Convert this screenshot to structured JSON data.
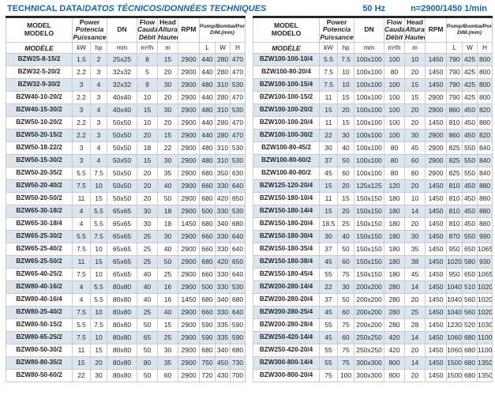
{
  "title": {
    "left_en": "TECHNICAL DATA/",
    "left_intl": "DATOS TÉCNICOS/DONNÉES TECHNIQUES",
    "frequency": "50 Hz",
    "speed": "n=2900/1450 1/min"
  },
  "colors": {
    "accent_blue": "#1566a9",
    "row_shade": "#dce4ec",
    "table_top_border": "#23282f"
  },
  "header": {
    "model": {
      "en": "MODEL",
      "es": "MODELO",
      "fr": "MODÈLE"
    },
    "power": {
      "en": "Power",
      "es": "Potencia",
      "fr": "Puissance"
    },
    "dn_label": "DN",
    "flow": {
      "en": "Flow",
      "es": "Caudal",
      "fr": "Débit"
    },
    "head": {
      "en": "Head",
      "es": "Altura",
      "fr": "Hauteur"
    },
    "rpm_label": "RPM",
    "dim": {
      "line1": "Pump/Bomba/Pompe",
      "line2": "DIM.(mm)"
    },
    "units": {
      "kw": "kW",
      "hp": "hp",
      "mm": "mm",
      "flow": "m³/h",
      "head": "m",
      "l": "L",
      "w": "W",
      "h": "H"
    }
  },
  "tables": [
    {
      "name": "left",
      "rows": [
        [
          "BZW25-8-15/2",
          "1.5",
          "2",
          "25x25",
          "8",
          "15",
          "2900",
          "440",
          "280",
          "470"
        ],
        [
          "BZW32-5-20/2",
          "2.2",
          "3",
          "32x32",
          "5",
          "20",
          "2900",
          "440",
          "280",
          "470"
        ],
        [
          "BZW32-9-30/2",
          "3",
          "4",
          "32x32",
          "9",
          "30",
          "2900",
          "480",
          "310",
          "530"
        ],
        [
          "BZW40-10-20/2",
          "2.2",
          "3",
          "40x40",
          "10",
          "20",
          "2900",
          "440",
          "280",
          "470"
        ],
        [
          "BZW40-15-30/2",
          "3",
          "4",
          "40x40",
          "15",
          "30",
          "2900",
          "480",
          "310",
          "530"
        ],
        [
          "BZW50-10-20/2",
          "2.2",
          "3",
          "50x50",
          "10",
          "20",
          "2900",
          "440",
          "280",
          "470"
        ],
        [
          "BZW50-20-15/2",
          "2.2",
          "3",
          "50x50",
          "20",
          "15",
          "2900",
          "440",
          "280",
          "470"
        ],
        [
          "BZW50-18-22/2",
          "3",
          "4",
          "50x50",
          "18",
          "22",
          "2900",
          "480",
          "310",
          "530"
        ],
        [
          "BZW50-15-30/2",
          "3",
          "4",
          "50x50",
          "15",
          "30",
          "2900",
          "480",
          "310",
          "530"
        ],
        [
          "BZW50-20-35/2",
          "5.5",
          "7.5",
          "50x50",
          "20",
          "35",
          "2900",
          "680",
          "350",
          "630"
        ],
        [
          "BZW50-20-40/2",
          "7.5",
          "10",
          "50x50",
          "20",
          "40",
          "2900",
          "660",
          "330",
          "640"
        ],
        [
          "BZW50-20-50/2",
          "11",
          "15",
          "50x50",
          "20",
          "50",
          "2900",
          "680",
          "420",
          "650"
        ],
        [
          "BZW65-30-18/2",
          "4",
          "5.5",
          "65x65",
          "30",
          "18",
          "2900",
          "500",
          "330",
          "530"
        ],
        [
          "BZW65-30-18/4",
          "4",
          "5.5",
          "65x65",
          "30",
          "18",
          "1450",
          "680",
          "340",
          "680"
        ],
        [
          "BZW65-25-30/2",
          "5.5",
          "7.5",
          "65x65",
          "25",
          "30",
          "2900",
          "660",
          "330",
          "640"
        ],
        [
          "BZW65-25-40/2",
          "7.5",
          "10",
          "65x65",
          "25",
          "40",
          "2900",
          "660",
          "330",
          "640"
        ],
        [
          "BZW65-25-50/2",
          "11",
          "15",
          "65x65",
          "25",
          "50",
          "2900",
          "680",
          "420",
          "650"
        ],
        [
          "BZW65-40-25/2",
          "7.5",
          "10",
          "65x65",
          "40",
          "25",
          "2900",
          "660",
          "330",
          "640"
        ],
        [
          "BZW80-40-16/2",
          "4",
          "5.5",
          "80x80",
          "40",
          "16",
          "2900",
          "500",
          "330",
          "530"
        ],
        [
          "BZW80-40-16/4",
          "4",
          "5.5",
          "80x80",
          "40",
          "16",
          "1450",
          "680",
          "340",
          "680"
        ],
        [
          "BZW80-25-40/2",
          "7.5",
          "10",
          "80x80",
          "25",
          "40",
          "2900",
          "660",
          "330",
          "640"
        ],
        [
          "BZW80-50-15/2",
          "5.5",
          "7.5",
          "80x80",
          "50",
          "15",
          "2900",
          "590",
          "335",
          "590"
        ],
        [
          "BZW80-65-25/2",
          "7.5",
          "10",
          "80x80",
          "65",
          "25",
          "2900",
          "590",
          "335",
          "590"
        ],
        [
          "BZW80-50-30/2",
          "11",
          "15",
          "80x80",
          "50",
          "30",
          "2900",
          "680",
          "340",
          "680"
        ],
        [
          "BZW80-80-35/2",
          "15",
          "20",
          "80x80",
          "80",
          "35",
          "2900",
          "750",
          "450",
          "730"
        ],
        [
          "BZW80-50-60/2",
          "22",
          "30",
          "80x80",
          "50",
          "60",
          "2900",
          "720",
          "430",
          "700"
        ]
      ]
    },
    {
      "name": "right",
      "rows": [
        [
          "BZW100-100-10/4",
          "5.5",
          "7.5",
          "100x100",
          "100",
          "10",
          "1450",
          "790",
          "425",
          "800"
        ],
        [
          "BZW100-80-20/4",
          "7.5",
          "10",
          "100x100",
          "80",
          "20",
          "1450",
          "790",
          "425",
          "800"
        ],
        [
          "BZW100-100-15/4",
          "7.5",
          "10",
          "100x100",
          "100",
          "15",
          "1450",
          "790",
          "425",
          "800"
        ],
        [
          "BZW100-100-15/2",
          "11",
          "15",
          "100x100",
          "100",
          "15",
          "2900",
          "790",
          "425",
          "800"
        ],
        [
          "BZW100-100-20/2",
          "15",
          "20",
          "100x100",
          "100",
          "20",
          "2900",
          "860",
          "450",
          "820"
        ],
        [
          "BZW100-100-20/4",
          "11",
          "15",
          "100x100",
          "100",
          "20",
          "1450",
          "810",
          "450",
          "880"
        ],
        [
          "BZW100-100-30/2",
          "22",
          "30",
          "100x100",
          "100",
          "30",
          "2900",
          "860",
          "450",
          "820"
        ],
        [
          "BZW100-80-45/2",
          "30",
          "40",
          "100x100",
          "80",
          "45",
          "2900",
          "825",
          "550",
          "840"
        ],
        [
          "BZW100-80-60/2",
          "37",
          "50",
          "100x100",
          "80",
          "60",
          "2900",
          "825",
          "550",
          "840"
        ],
        [
          "BZW100-80-80/2",
          "45",
          "60",
          "100x100",
          "80",
          "80",
          "2900",
          "825",
          "550",
          "840"
        ],
        [
          "BZW125-120-20/4",
          "15",
          "20",
          "125x125",
          "120",
          "20",
          "1450",
          "810",
          "450",
          "880"
        ],
        [
          "BZW150-180-10/4",
          "11",
          "15",
          "150x150",
          "180",
          "10",
          "1450",
          "810",
          "450",
          "880"
        ],
        [
          "BZW150-180-14/4",
          "15",
          "20",
          "150x150",
          "180",
          "14",
          "1450",
          "810",
          "450",
          "880"
        ],
        [
          "BZW150-180-20/4",
          "18.5",
          "25",
          "150x150",
          "180",
          "20",
          "1450",
          "810",
          "450",
          "880"
        ],
        [
          "BZW150-180-30/4",
          "30",
          "40",
          "150x150",
          "180",
          "30",
          "1450",
          "870",
          "550",
          "990"
        ],
        [
          "BZW150-180-35/4",
          "37",
          "50",
          "150x150",
          "180",
          "35",
          "1450",
          "950",
          "650",
          "1065"
        ],
        [
          "BZW150-180-38/4",
          "45",
          "60",
          "150x150",
          "180",
          "38",
          "1450",
          "1020",
          "580",
          "930"
        ],
        [
          "BZW150-180-45/4",
          "55",
          "75",
          "150x150",
          "180",
          "45",
          "1450",
          "950",
          "650",
          "1065"
        ],
        [
          "BZW200-280-14/4",
          "22",
          "30",
          "200x200",
          "280",
          "14",
          "1450",
          "1040",
          "510",
          "1020"
        ],
        [
          "BZW200-280-20/4",
          "37",
          "50",
          "200x200",
          "280",
          "20",
          "1450",
          "1040",
          "560",
          "1020"
        ],
        [
          "BZW200-280-25/4",
          "45",
          "60",
          "200x200",
          "280",
          "25",
          "1450",
          "1040",
          "560",
          "1020"
        ],
        [
          "BZW200-280-28/4",
          "55",
          "75",
          "200x200",
          "280",
          "28",
          "1450",
          "1230",
          "520",
          "1030"
        ],
        [
          "BZW250-420-14/4",
          "45",
          "60",
          "250x250",
          "420",
          "14",
          "1450",
          "1060",
          "680",
          "1100"
        ],
        [
          "BZW250-420-20/4",
          "55",
          "75",
          "250x250",
          "420",
          "20",
          "1450",
          "1060",
          "680",
          "1100"
        ],
        [
          "BZW300-800-14/4",
          "55",
          "75",
          "300x300",
          "800",
          "14",
          "1450",
          "1500",
          "680",
          "1350"
        ],
        [
          "BZW300-800-20/4",
          "75",
          "100",
          "300x300",
          "800",
          "20",
          "1450",
          "1500",
          "680",
          "1350"
        ]
      ]
    }
  ]
}
